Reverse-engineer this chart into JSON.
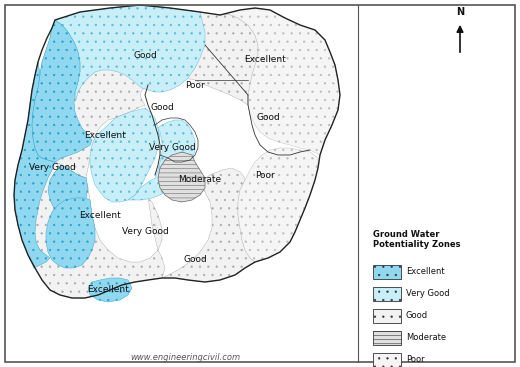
{
  "title": "Ground Water\nPotentiality Zones",
  "legend_entries": [
    "Excellent",
    "Very Good",
    "Good",
    "Moderate",
    "Poor"
  ],
  "website": "www.engineeringcivil.com",
  "bg_color": "#ffffff",
  "figsize": [
    5.2,
    3.67
  ],
  "dpi": 100,
  "zone_label_fontsize": 6.5,
  "zone_label_color": "#111111",
  "excellent_color": "#b8e8f0",
  "very_good_color": "#d0f0f8",
  "good_color": "#e8e8e8",
  "moderate_color": "#d8d8d8",
  "poor_color": "#f0f0f0",
  "excellent_hatch": "ooo",
  "very_good_hatch": "ooo",
  "good_hatch": "..",
  "moderate_hatch": "----",
  "poor_hatch": "..."
}
